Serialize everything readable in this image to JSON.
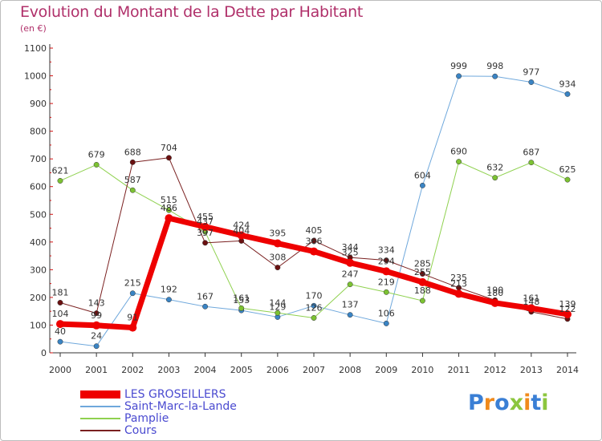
{
  "header": {
    "title": "Evolution du Montant de la Dette par Habitant",
    "unit": "(en €)"
  },
  "logo": {
    "text": "Proxiti",
    "letters": [
      {
        "ch": "P",
        "color": "#3a7fd5"
      },
      {
        "ch": "r",
        "color": "#f08a1c"
      },
      {
        "ch": "o",
        "color": "#3a7fd5"
      },
      {
        "ch": "x",
        "color": "#8cc63e"
      },
      {
        "ch": "i",
        "color": "#f08a1c"
      },
      {
        "ch": "t",
        "color": "#3a7fd5"
      },
      {
        "ch": "i",
        "color": "#8cc63e"
      }
    ]
  },
  "chart_data": {
    "type": "line",
    "title": "Evolution du Montant de la Dette par Habitant",
    "ylabel": "(en €)",
    "x": [
      "2000",
      "2001",
      "2002",
      "2003",
      "2004",
      "2005",
      "2006",
      "2007",
      "2008",
      "2009",
      "2010",
      "2011",
      "2012",
      "2013",
      "2014"
    ],
    "ylim": [
      0,
      1100
    ],
    "yticks": [
      0,
      100,
      200,
      300,
      400,
      500,
      600,
      700,
      800,
      900,
      1000,
      1100
    ],
    "grid": false,
    "legend_position": "bottom",
    "series": [
      {
        "name": "LES GROSEILLERS",
        "color": "#ee0000",
        "markerColor": "#ee0000",
        "width": 7,
        "values": [
          104,
          99,
          91,
          486,
          455,
          424,
          395,
          366,
          325,
          294,
          255,
          213,
          180,
          161,
          139
        ],
        "labels": [
          "104",
          "99",
          "91",
          "486",
          "455",
          "424",
          "395",
          "366",
          "325",
          "294",
          "255",
          "213",
          "180",
          "161",
          "139"
        ]
      },
      {
        "name": "Saint-Marc-la-Lande",
        "color": "#6fa8dc",
        "markerColor": "#3a84c4",
        "width": 1,
        "values": [
          40,
          24,
          215,
          192,
          167,
          153,
          129,
          170,
          137,
          106,
          604,
          999,
          998,
          977,
          934
        ],
        "labels": [
          "40",
          "24",
          "215",
          "192",
          "167",
          "153",
          "129",
          "170",
          "137",
          "106",
          "604",
          "999",
          "998",
          "977",
          "934"
        ]
      },
      {
        "name": "Pamplie",
        "color": "#8fd14f",
        "markerColor": "#7cc232",
        "width": 1,
        "values": [
          621,
          679,
          587,
          515,
          437,
          161,
          144,
          126,
          247,
          219,
          188,
          690,
          632,
          687,
          625
        ],
        "labels": [
          "621",
          "679",
          "587",
          "515",
          "437",
          "161",
          "144",
          "126",
          "247",
          "219",
          "188",
          "690",
          "632",
          "687",
          "625"
        ]
      },
      {
        "name": "Cours",
        "color": "#7a2020",
        "markerColor": "#6a1010",
        "width": 1,
        "values": [
          181,
          143,
          688,
          704,
          397,
          404,
          308,
          405,
          344,
          334,
          285,
          235,
          190,
          148,
          122
        ],
        "labels": [
          "181",
          "143",
          "688",
          "704",
          "397",
          "404",
          "308",
          "405",
          "344",
          "334",
          "285",
          "235",
          "190",
          "148",
          "122"
        ]
      }
    ]
  }
}
